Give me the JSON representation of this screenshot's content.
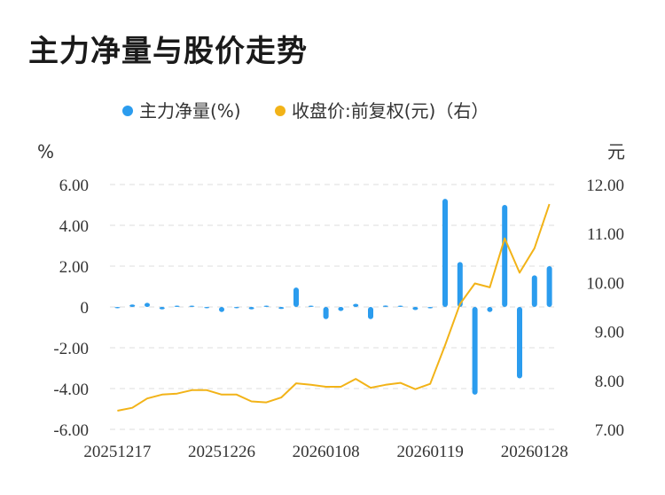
{
  "title": "主力净量与股价走势",
  "colors": {
    "bar": "#2b9cee",
    "line": "#f2b318",
    "grid": "#dddddd",
    "text": "#333333"
  },
  "chart_data": {
    "type": "bar+line",
    "title": "主力净量与股价走势",
    "legend": {
      "placement": "top-center",
      "items": [
        {
          "label": "主力净量(%)",
          "color": "#2b9cee",
          "marker": "dot"
        },
        {
          "label": "收盘价:前复权(元)（右）",
          "color": "#f2b318",
          "marker": "dot"
        }
      ]
    },
    "left_axis": {
      "unit": "%",
      "range": [
        -6,
        6
      ],
      "ticks": [
        6,
        4,
        2,
        0,
        -2,
        -4,
        -6
      ],
      "tick_labels": [
        "6.00",
        "4.00",
        "2.00",
        "0",
        "-2.00",
        "-4.00",
        "-6.00"
      ]
    },
    "right_axis": {
      "unit": "元",
      "range": [
        7,
        12
      ],
      "ticks": [
        12,
        11,
        10,
        9,
        8,
        7
      ],
      "tick_labels": [
        "12.00",
        "11.00",
        "10.00",
        "9.00",
        "8.00",
        "7.00"
      ]
    },
    "x_tick_labels": [
      "20251217",
      "20251226",
      "20260108",
      "20260119",
      "20260128"
    ],
    "x_tick_indices": [
      0,
      7,
      14,
      21,
      28
    ],
    "grid": true,
    "series": [
      {
        "name": "主力净量(%)",
        "type": "bar",
        "axis": "left",
        "values": [
          -0.05,
          0.12,
          0.2,
          -0.12,
          0.05,
          0.06,
          -0.05,
          -0.25,
          -0.05,
          -0.12,
          0.02,
          -0.1,
          0.95,
          0.06,
          -0.6,
          -0.2,
          0.15,
          -0.6,
          0.07,
          0.06,
          -0.15,
          -0.07,
          5.3,
          2.2,
          -4.3,
          -0.25,
          5.0,
          -3.5,
          1.55,
          2.0
        ]
      },
      {
        "name": "收盘价:前复权(元)（右）",
        "type": "line",
        "axis": "right",
        "values": [
          7.38,
          7.44,
          7.63,
          7.71,
          7.73,
          7.8,
          7.8,
          7.71,
          7.71,
          7.57,
          7.55,
          7.65,
          7.94,
          7.91,
          7.87,
          7.87,
          8.03,
          7.85,
          7.91,
          7.95,
          7.82,
          7.93,
          8.72,
          9.56,
          9.98,
          9.9,
          10.9,
          10.2,
          10.7,
          11.6
        ]
      }
    ]
  }
}
